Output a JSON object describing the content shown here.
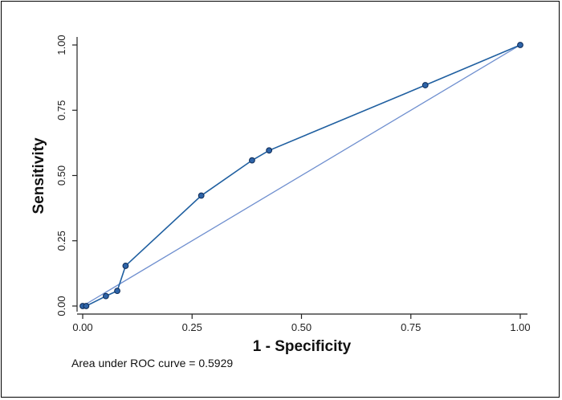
{
  "chart_data": {
    "type": "line",
    "xlabel": "1 - Specificity",
    "ylabel": "Sensitivity",
    "xlim": [
      0,
      1
    ],
    "ylim": [
      0,
      1
    ],
    "x_ticks": [
      "0.00",
      "0.25",
      "0.50",
      "0.75",
      "1.00"
    ],
    "y_ticks": [
      "0.00",
      "0.25",
      "0.50",
      "0.75",
      "1.00"
    ],
    "grid": false,
    "series": [
      {
        "values": [
          {
            "x": 0.0,
            "y": 0.0
          },
          {
            "x": 0.008,
            "y": 0.0
          },
          {
            "x": 0.053,
            "y": 0.038
          },
          {
            "x": 0.079,
            "y": 0.058
          },
          {
            "x": 0.098,
            "y": 0.154
          },
          {
            "x": 0.271,
            "y": 0.423
          },
          {
            "x": 0.387,
            "y": 0.558
          },
          {
            "x": 0.426,
            "y": 0.596
          },
          {
            "x": 0.783,
            "y": 0.846
          },
          {
            "x": 1.0,
            "y": 1.0
          }
        ]
      }
    ],
    "reference_line": [
      {
        "x": 0,
        "y": 0
      },
      {
        "x": 1,
        "y": 1
      }
    ],
    "annotation": "Area under ROC curve = 0.5929"
  },
  "colors": {
    "curve": "#1f5fa0",
    "reference": "#6f8fcf",
    "marker_fill": "#2e64a8",
    "marker_stroke": "#0d2a55",
    "axis": "#222222"
  }
}
